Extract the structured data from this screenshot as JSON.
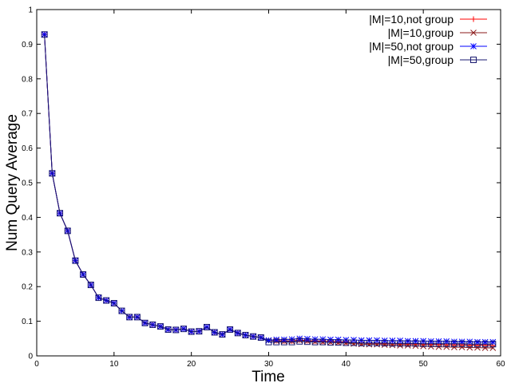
{
  "chart_data": {
    "type": "line",
    "title": "",
    "xlabel": "Time",
    "ylabel": "Num Query Average",
    "xlim": [
      0,
      60
    ],
    "ylim": [
      0,
      1
    ],
    "x_ticks": [
      0,
      10,
      20,
      30,
      40,
      50,
      60
    ],
    "y_ticks": [
      0,
      0.1,
      0.2,
      0.3,
      0.4,
      0.5,
      0.6,
      0.7,
      0.8,
      0.9,
      1
    ],
    "x_tick_labels": [
      "0",
      "10",
      "20",
      "30",
      "40",
      "50",
      "60"
    ],
    "y_tick_labels": [
      "0",
      "0.1",
      "0.2",
      "0.3",
      "0.4",
      "0.5",
      "0.6",
      "0.7",
      "0.8",
      "0.9",
      "1"
    ],
    "grid": false,
    "legend_position": "top-right",
    "x": [
      1,
      2,
      3,
      4,
      5,
      6,
      7,
      8,
      9,
      10,
      11,
      12,
      13,
      14,
      15,
      16,
      17,
      18,
      19,
      20,
      21,
      22,
      23,
      24,
      25,
      26,
      27,
      28,
      29,
      30,
      31,
      32,
      33,
      34,
      35,
      36,
      37,
      38,
      39,
      40,
      41,
      42,
      43,
      44,
      45,
      46,
      47,
      48,
      49,
      50,
      51,
      52,
      53,
      54,
      55,
      56,
      57,
      58,
      59
    ],
    "series": [
      {
        "name": "|M|=10,not group",
        "color": "#ff0000",
        "marker": "plus",
        "values": [
          0.928,
          0.527,
          0.412,
          0.361,
          0.275,
          0.235,
          0.205,
          0.168,
          0.16,
          0.152,
          0.13,
          0.112,
          0.112,
          0.095,
          0.09,
          0.085,
          0.076,
          0.075,
          0.078,
          0.07,
          0.071,
          0.083,
          0.068,
          0.062,
          0.076,
          0.066,
          0.06,
          0.056,
          0.053,
          0.045,
          0.044,
          0.043,
          0.043,
          0.046,
          0.044,
          0.043,
          0.042,
          0.042,
          0.041,
          0.04,
          0.038,
          0.037,
          0.036,
          0.036,
          0.035,
          0.035,
          0.034,
          0.034,
          0.034,
          0.033,
          0.033,
          0.033,
          0.032,
          0.032,
          0.032,
          0.031,
          0.031,
          0.031,
          0.03
        ]
      },
      {
        "name": "|M|=10,group",
        "color": "#8b1a1a",
        "marker": "cross",
        "values": [
          0.928,
          0.527,
          0.412,
          0.361,
          0.275,
          0.235,
          0.205,
          0.168,
          0.16,
          0.152,
          0.13,
          0.112,
          0.112,
          0.095,
          0.09,
          0.085,
          0.076,
          0.075,
          0.078,
          0.07,
          0.071,
          0.083,
          0.068,
          0.062,
          0.076,
          0.066,
          0.06,
          0.056,
          0.053,
          0.045,
          0.043,
          0.042,
          0.042,
          0.045,
          0.043,
          0.041,
          0.04,
          0.039,
          0.038,
          0.037,
          0.035,
          0.034,
          0.033,
          0.033,
          0.032,
          0.031,
          0.03,
          0.03,
          0.029,
          0.028,
          0.027,
          0.026,
          0.026,
          0.025,
          0.025,
          0.024,
          0.024,
          0.023,
          0.023
        ]
      },
      {
        "name": "|M|=50,not group",
        "color": "#0000ff",
        "marker": "star",
        "values": [
          0.928,
          0.527,
          0.412,
          0.361,
          0.275,
          0.235,
          0.205,
          0.168,
          0.16,
          0.152,
          0.13,
          0.112,
          0.112,
          0.095,
          0.09,
          0.085,
          0.076,
          0.075,
          0.078,
          0.07,
          0.071,
          0.083,
          0.068,
          0.062,
          0.076,
          0.066,
          0.06,
          0.056,
          0.053,
          0.045,
          0.047,
          0.047,
          0.048,
          0.05,
          0.049,
          0.048,
          0.048,
          0.047,
          0.047,
          0.046,
          0.046,
          0.045,
          0.045,
          0.045,
          0.044,
          0.044,
          0.044,
          0.043,
          0.043,
          0.043,
          0.042,
          0.042,
          0.042,
          0.041,
          0.041,
          0.041,
          0.04,
          0.04,
          0.04
        ]
      },
      {
        "name": "|M|=50,group",
        "color": "#191970",
        "marker": "square",
        "values": [
          0.928,
          0.527,
          0.412,
          0.361,
          0.275,
          0.235,
          0.205,
          0.168,
          0.16,
          0.152,
          0.13,
          0.112,
          0.112,
          0.095,
          0.09,
          0.085,
          0.076,
          0.075,
          0.078,
          0.07,
          0.071,
          0.083,
          0.068,
          0.062,
          0.076,
          0.066,
          0.06,
          0.056,
          0.053,
          0.04,
          0.04,
          0.04,
          0.04,
          0.042,
          0.041,
          0.04,
          0.04,
          0.039,
          0.039,
          0.038,
          0.038,
          0.037,
          0.037,
          0.037,
          0.037,
          0.036,
          0.036,
          0.036,
          0.036,
          0.035,
          0.035,
          0.035,
          0.035,
          0.035,
          0.035,
          0.034,
          0.034,
          0.034,
          0.034
        ]
      }
    ]
  }
}
